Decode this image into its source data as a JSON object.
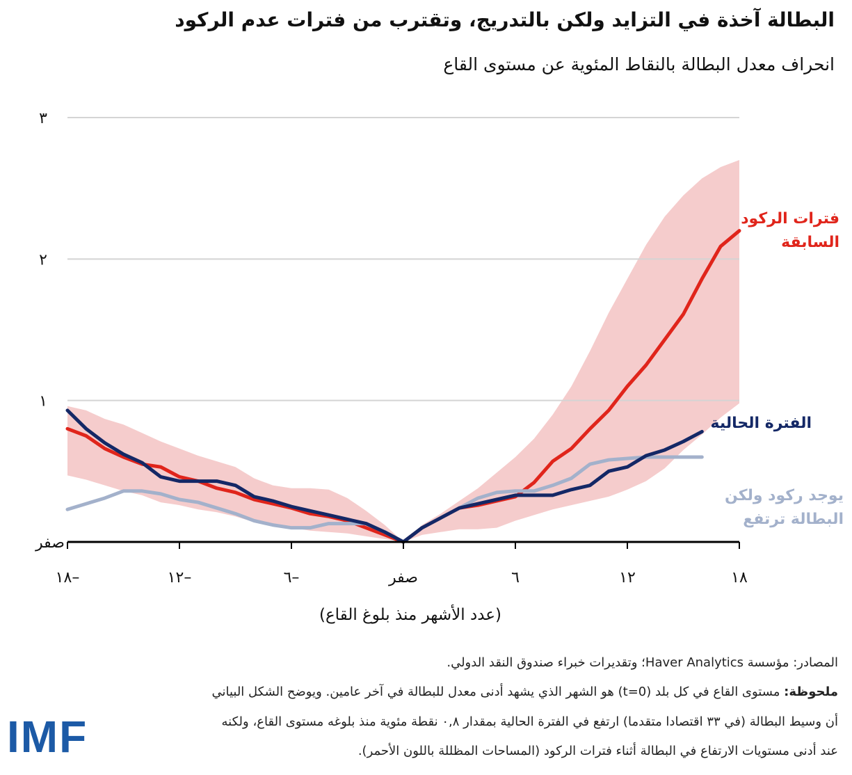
{
  "title": "البطالة آخذة في التزايد ولكن بالتدريج، وتقترب من فترات عدم الركود",
  "subtitle": "انحراف معدل البطالة بالنقاط المئوية عن مستوى القاع",
  "chart_data": {
    "type": "line",
    "xlabel": "(عدد الأشهر منذ بلوغ القاع)",
    "ylabel": "",
    "xlim": [
      -18,
      18
    ],
    "ylim": [
      0,
      3
    ],
    "x_ticks": [
      -18,
      -12,
      -6,
      0,
      6,
      12,
      18
    ],
    "x_tick_labels": [
      "١٨–",
      "١٢–",
      "٦–",
      "صفر",
      "٦",
      "١٢",
      "١٨"
    ],
    "y_ticks": [
      0,
      1,
      2,
      3
    ],
    "y_tick_labels": [
      "صفر",
      "١",
      "٢",
      "٣"
    ],
    "grid": "horizontal",
    "x": [
      -18,
      -17,
      -16,
      -15,
      -14,
      -13,
      -12,
      -11,
      -10,
      -9,
      -8,
      -7,
      -6,
      -5,
      -4,
      -3,
      -2,
      -1,
      0,
      1,
      2,
      3,
      4,
      5,
      6,
      7,
      8,
      9,
      10,
      11,
      12,
      13,
      14,
      15,
      16,
      17,
      18
    ],
    "series": [
      {
        "name": "فترات الركود السابقة",
        "color": "#e0251b",
        "values": [
          0.8,
          0.75,
          0.66,
          0.6,
          0.55,
          0.53,
          0.46,
          0.43,
          0.38,
          0.35,
          0.3,
          0.27,
          0.24,
          0.2,
          0.18,
          0.15,
          0.1,
          0.05,
          0,
          0.1,
          0.17,
          0.24,
          0.26,
          0.29,
          0.32,
          0.42,
          0.57,
          0.66,
          0.8,
          0.93,
          1.1,
          1.25,
          1.43,
          1.61,
          1.86,
          2.09,
          2.2
        ]
      },
      {
        "name": "الفترة الحالية",
        "color": "#142866",
        "values": [
          0.93,
          0.8,
          0.7,
          0.62,
          0.56,
          0.46,
          0.43,
          0.43,
          0.43,
          0.4,
          0.32,
          0.29,
          0.25,
          0.22,
          0.19,
          0.16,
          0.13,
          0.07,
          0,
          0.1,
          0.17,
          0.24,
          0.27,
          0.3,
          0.33,
          0.33,
          0.33,
          0.37,
          0.4,
          0.5,
          0.53,
          0.61,
          0.65,
          0.71,
          0.78,
          null,
          null
        ]
      },
      {
        "name": "يوجد ركود ولكن البطالة ترتفع",
        "color": "#a3b1cb",
        "values": [
          0.23,
          0.27,
          0.31,
          0.36,
          0.36,
          0.34,
          0.3,
          0.28,
          0.24,
          0.2,
          0.15,
          0.12,
          0.1,
          0.1,
          0.13,
          0.13,
          0.13,
          0.07,
          0,
          0.1,
          0.17,
          0.24,
          0.31,
          0.35,
          0.36,
          0.36,
          0.4,
          0.45,
          0.55,
          0.58,
          0.59,
          0.6,
          0.6,
          0.6,
          0.6,
          null,
          null
        ]
      }
    ],
    "band": {
      "color": "#f5cccc",
      "upper": [
        0.96,
        0.93,
        0.87,
        0.83,
        0.77,
        0.71,
        0.66,
        0.61,
        0.57,
        0.53,
        0.45,
        0.4,
        0.38,
        0.38,
        0.37,
        0.31,
        0.22,
        0.12,
        0,
        0.12,
        0.2,
        0.29,
        0.38,
        0.49,
        0.6,
        0.73,
        0.9,
        1.1,
        1.35,
        1.62,
        1.86,
        2.1,
        2.3,
        2.45,
        2.57,
        2.65,
        2.7
      ],
      "lower": [
        0.47,
        0.44,
        0.4,
        0.36,
        0.33,
        0.28,
        0.26,
        0.23,
        0.21,
        0.18,
        0.14,
        0.11,
        0.1,
        0.08,
        0.07,
        0.06,
        0.04,
        0.02,
        0,
        0.05,
        0.07,
        0.09,
        0.09,
        0.1,
        0.15,
        0.19,
        0.23,
        0.26,
        0.29,
        0.32,
        0.37,
        0.43,
        0.52,
        0.65,
        0.76,
        0.88,
        0.98
      ]
    }
  },
  "labels": {
    "previous": "فترات الركود السابقة",
    "current": "الفترة الحالية",
    "recession_rising": "يوجد ركود ولكن البطالة ترتفع"
  },
  "footer": {
    "sources": "المصادر: مؤسسة Haver Analytics؛ وتقديرات خبراء صندوق النقد الدولي.",
    "note_label": "ملحوظة:",
    "note_line1": " مستوى القاع في كل بلد (t=0) هو الشهر الذي يشهد أدنى معدل للبطالة في آخر عامين. ويوضح الشكل البياني",
    "note_line2": "أن وسيط البطالة (في ٣٣ اقتصادا متقدما) ارتفع في الفترة الحالية بمقدار ٠,٨ نقطة مئوية منذ بلوغه مستوى القاع، ولكنه",
    "note_line3": "عند أدنى مستويات الارتفاع في البطالة أثناء فترات الركود (المساحات المظللة باللون الأحمر)."
  },
  "logo": "IMF"
}
